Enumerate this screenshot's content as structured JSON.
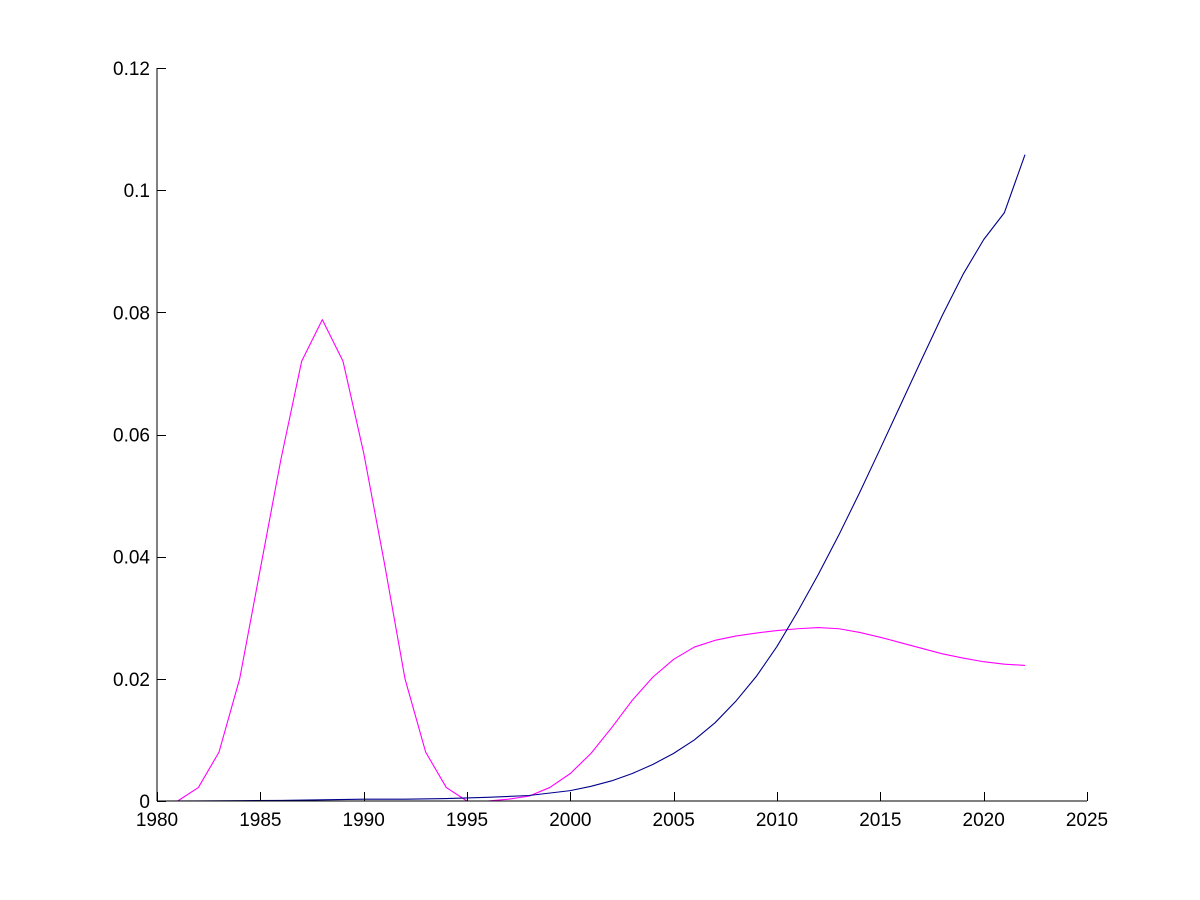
{
  "chart_data": {
    "type": "line",
    "title": "",
    "xlabel": "",
    "ylabel": "",
    "xlim": [
      1980,
      2025
    ],
    "ylim": [
      0,
      0.12
    ],
    "x_ticks": [
      1980,
      1985,
      1990,
      1995,
      2000,
      2005,
      2010,
      2015,
      2020,
      2025
    ],
    "y_ticks": [
      0,
      0.02,
      0.04,
      0.06,
      0.08,
      0.1,
      0.12
    ],
    "x_tick_labels": [
      "1980",
      "1985",
      "1990",
      "1995",
      "2000",
      "2005",
      "2010",
      "2015",
      "2020",
      "2025"
    ],
    "y_tick_labels": [
      "0",
      "0.02",
      "0.04",
      "0.06",
      "0.08",
      "0.1",
      "0.12"
    ],
    "grid": false,
    "legend": "none",
    "series": [
      {
        "color": "#ff00ff",
        "points": [
          [
            1980,
            0
          ],
          [
            1981,
            0
          ],
          [
            1982,
            0.0022
          ],
          [
            1983,
            0.008
          ],
          [
            1984,
            0.02
          ],
          [
            1985,
            0.038
          ],
          [
            1986,
            0.056
          ],
          [
            1987,
            0.072
          ],
          [
            1988,
            0.0788
          ],
          [
            1989,
            0.072
          ],
          [
            1990,
            0.057
          ],
          [
            1991,
            0.039
          ],
          [
            1992,
            0.02
          ],
          [
            1993,
            0.008
          ],
          [
            1994,
            0.0022
          ],
          [
            1995,
            0
          ],
          [
            1996,
            0
          ],
          [
            1997,
            0.0003
          ],
          [
            1998,
            0.0008
          ],
          [
            1999,
            0.0022
          ],
          [
            2000,
            0.0045
          ],
          [
            2001,
            0.0078
          ],
          [
            2002,
            0.012
          ],
          [
            2003,
            0.0165
          ],
          [
            2004,
            0.0203
          ],
          [
            2005,
            0.0232
          ],
          [
            2006,
            0.0252
          ],
          [
            2007,
            0.0263
          ],
          [
            2008,
            0.027
          ],
          [
            2009,
            0.0275
          ],
          [
            2010,
            0.0279
          ],
          [
            2011,
            0.0282
          ],
          [
            2012,
            0.0284
          ],
          [
            2013,
            0.0282
          ],
          [
            2014,
            0.0276
          ],
          [
            2015,
            0.0268
          ],
          [
            2016,
            0.0259
          ],
          [
            2017,
            0.025
          ],
          [
            2018,
            0.0241
          ],
          [
            2019,
            0.0234
          ],
          [
            2020,
            0.0228
          ],
          [
            2021,
            0.0224
          ],
          [
            2022,
            0.0222
          ]
        ]
      },
      {
        "color": "#00008b",
        "points": [
          [
            1980,
            0
          ],
          [
            1982,
            2e-05
          ],
          [
            1984,
            5e-05
          ],
          [
            1986,
            0.0001
          ],
          [
            1988,
            0.0002
          ],
          [
            1990,
            0.0003
          ],
          [
            1992,
            0.0003
          ],
          [
            1994,
            0.0004
          ],
          [
            1996,
            0.0006
          ],
          [
            1998,
            0.0009
          ],
          [
            2000,
            0.0017
          ],
          [
            2001,
            0.0024
          ],
          [
            2002,
            0.0033
          ],
          [
            2003,
            0.0045
          ],
          [
            2004,
            0.006
          ],
          [
            2005,
            0.0078
          ],
          [
            2006,
            0.01
          ],
          [
            2007,
            0.0128
          ],
          [
            2008,
            0.0163
          ],
          [
            2009,
            0.0204
          ],
          [
            2010,
            0.0253
          ],
          [
            2011,
            0.031
          ],
          [
            2012,
            0.0371
          ],
          [
            2013,
            0.0436
          ],
          [
            2014,
            0.0505
          ],
          [
            2015,
            0.0577
          ],
          [
            2016,
            0.065
          ],
          [
            2017,
            0.0723
          ],
          [
            2018,
            0.0795
          ],
          [
            2019,
            0.0862
          ],
          [
            2020,
            0.0919
          ],
          [
            2021,
            0.0963
          ],
          [
            2022,
            0.1058
          ]
        ]
      }
    ]
  }
}
